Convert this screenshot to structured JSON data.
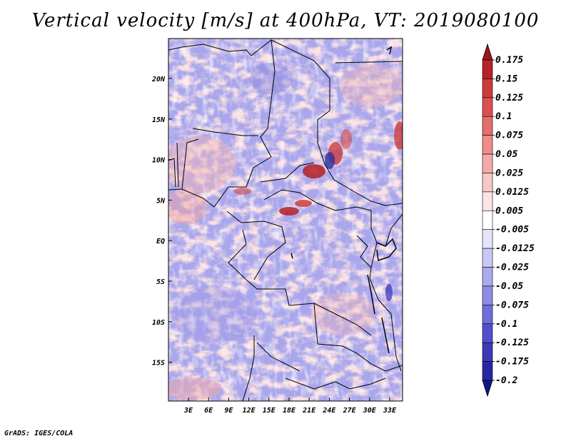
{
  "title": "Vertical velocity [m/s] at 400hPa, VT: 2019080100",
  "credit": "GrADS: IGES/COLA",
  "map": {
    "variable": "Vertical velocity",
    "units": "m/s",
    "level": "400hPa",
    "valid_time": "2019080100",
    "lat_labels": [
      "20N",
      "15N",
      "10N",
      "5N",
      "EQ",
      "5S",
      "10S",
      "15S"
    ],
    "lon_labels": [
      "3E",
      "6E",
      "9E",
      "12E",
      "15E",
      "18E",
      "21E",
      "24E",
      "27E",
      "30E",
      "33E"
    ]
  },
  "colorbar": {
    "labels": [
      "0.175",
      "0.15",
      "0.125",
      "0.1",
      "0.075",
      "0.05",
      "0.025",
      "0.0125",
      "0.005",
      "-0.005",
      "-0.0125",
      "-0.025",
      "-0.05",
      "-0.075",
      "-0.1",
      "-0.125",
      "-0.175",
      "-0.2"
    ],
    "colors": [
      "#a0141e",
      "#b92228",
      "#cd3a3a",
      "#dc5050",
      "#e66e6e",
      "#ee8c8c",
      "#f4aaaa",
      "#f8c8c8",
      "#fce4e4",
      "#ffffff",
      "#e4e4fc",
      "#c8c8f4",
      "#aaaaee",
      "#8c8ce6",
      "#6e6edc",
      "#5050cd",
      "#3a3ab9",
      "#2828a5",
      "#14148c"
    ]
  }
}
